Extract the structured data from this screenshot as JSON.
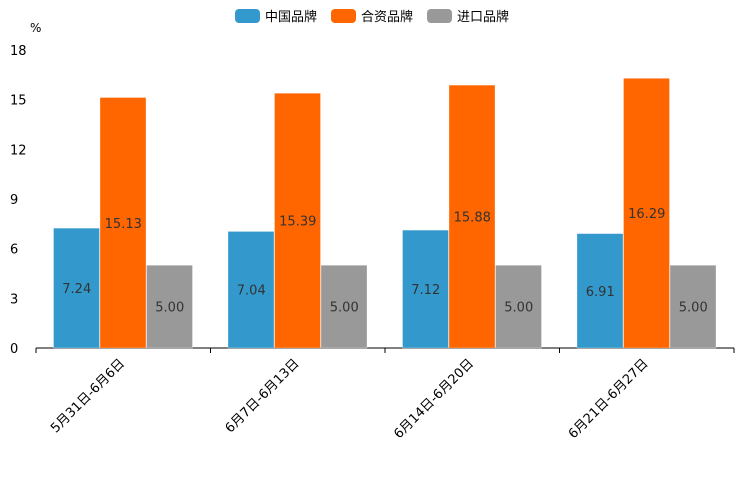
{
  "chart_data": {
    "type": "bar",
    "title": "",
    "unit": "%",
    "categories": [
      "5月31日-6月6日",
      "6月7日-6月13日",
      "6月14日-6月20日",
      "6月21日-6月27日"
    ],
    "series": [
      {
        "name": "中国品牌",
        "color": "#3399cc",
        "values": [
          7.24,
          7.04,
          7.12,
          6.91
        ],
        "labels": [
          "7.24",
          "7.04",
          "7.12",
          "6.91"
        ]
      },
      {
        "name": "合资品牌",
        "color": "#ff6600",
        "values": [
          15.13,
          15.39,
          15.88,
          16.29
        ],
        "labels": [
          "15.13",
          "15.39",
          "15.88",
          "16.29"
        ]
      },
      {
        "name": "进口品牌",
        "color": "#999999",
        "values": [
          5.0,
          5.0,
          5.0,
          5.0
        ],
        "labels": [
          "5.00",
          "5.00",
          "5.00",
          "5.00"
        ]
      }
    ],
    "ylim": [
      0,
      18
    ],
    "yticks": [
      "0",
      "3",
      "6",
      "9",
      "12",
      "15",
      "18"
    ],
    "xlabel": "",
    "ylabel": "%",
    "legend_position": "top-center",
    "grid": false
  }
}
